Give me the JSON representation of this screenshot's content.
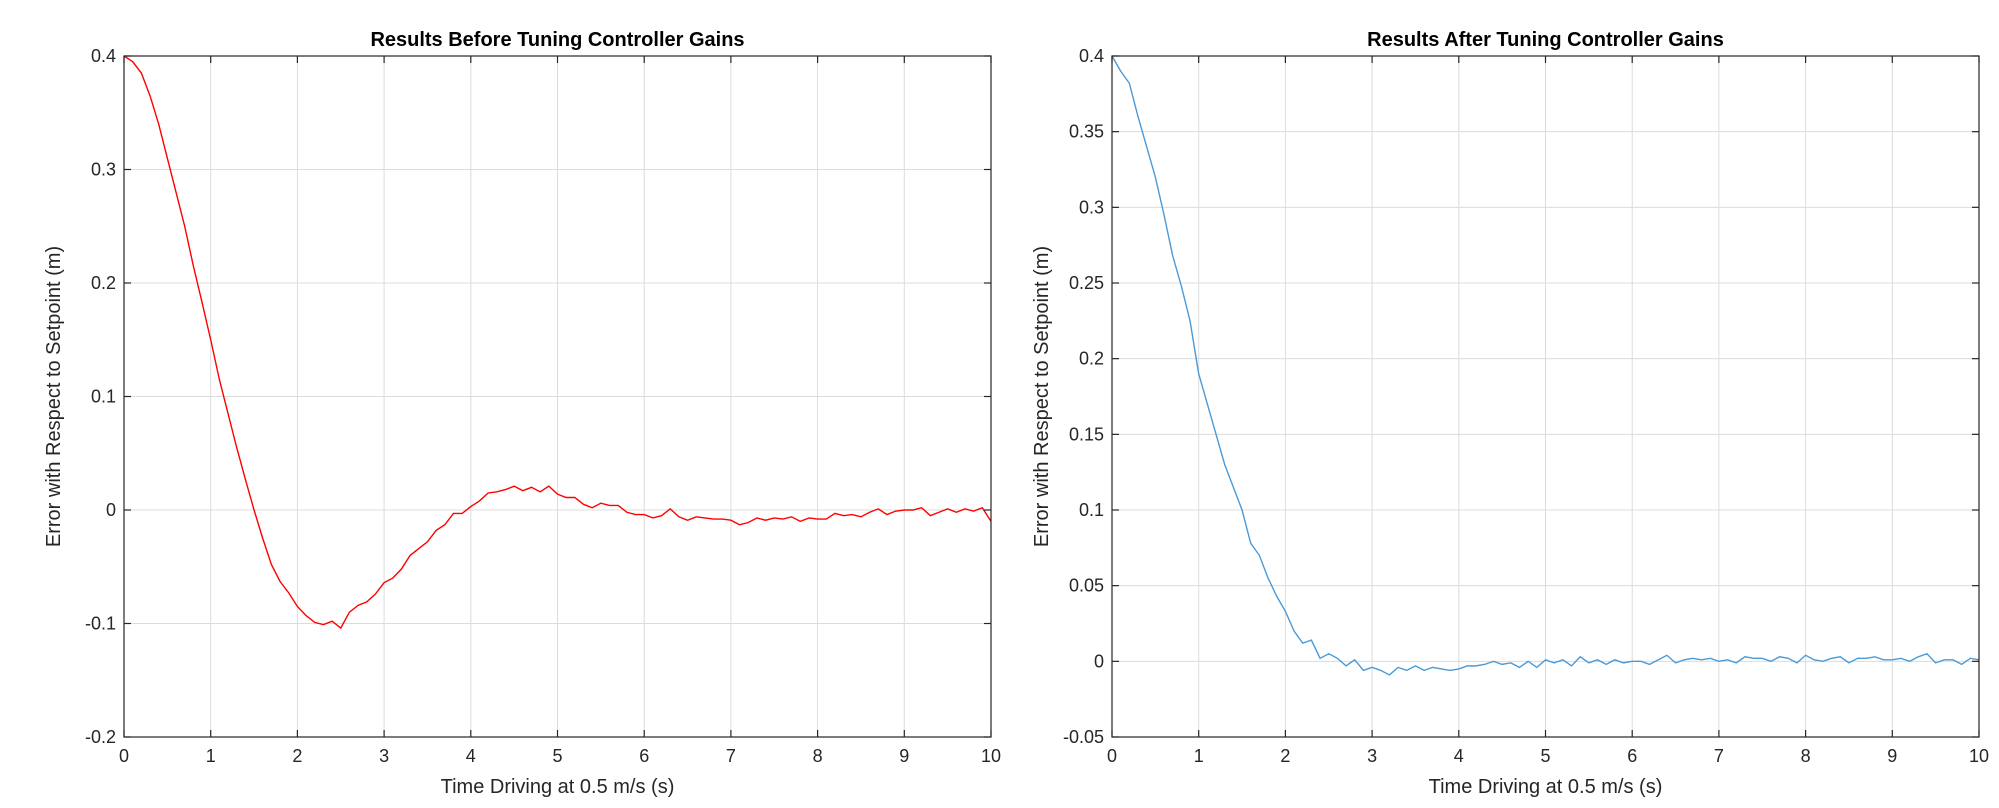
{
  "chart_data": [
    {
      "type": "line",
      "title": "Results Before Tuning Controller Gains",
      "xlabel": "Time Driving at 0.5 m/s (s)",
      "ylabel": "Error with Respect to Setpoint (m)",
      "xlim": [
        0,
        10
      ],
      "ylim": [
        -0.2,
        0.4
      ],
      "xticks": [
        0,
        1,
        2,
        3,
        4,
        5,
        6,
        7,
        8,
        9,
        10
      ],
      "yticks": [
        -0.2,
        -0.1,
        0,
        0.1,
        0.2,
        0.3,
        0.4
      ],
      "xtick_labels": [
        "0",
        "1",
        "2",
        "3",
        "4",
        "5",
        "6",
        "7",
        "8",
        "9",
        "10"
      ],
      "ytick_labels": [
        "-0.2",
        "-0.1",
        "0",
        "0.1",
        "0.2",
        "0.3",
        "0.4"
      ],
      "grid": true,
      "series": [
        {
          "color": "#ff0000",
          "x": [
            0,
            0.1,
            0.2,
            0.3,
            0.4,
            0.5,
            0.6,
            0.7,
            0.8,
            0.9,
            1.0,
            1.1,
            1.2,
            1.3,
            1.4,
            1.5,
            1.6,
            1.7,
            1.8,
            1.9,
            2.0,
            2.1,
            2.2,
            2.3,
            2.4,
            2.5,
            2.6,
            2.7,
            2.8,
            2.9,
            3.0,
            3.1,
            3.2,
            3.3,
            3.4,
            3.5,
            3.6,
            3.7,
            3.8,
            3.9,
            4.0,
            4.1,
            4.2,
            4.3,
            4.4,
            4.5,
            4.6,
            4.7,
            4.8,
            4.9,
            5.0,
            5.1,
            5.2,
            5.3,
            5.4,
            5.5,
            5.6,
            5.7,
            5.8,
            5.9,
            6.0,
            6.1,
            6.2,
            6.3,
            6.4,
            6.5,
            6.6,
            6.7,
            6.8,
            6.9,
            7.0,
            7.1,
            7.2,
            7.3,
            7.4,
            7.5,
            7.6,
            7.7,
            7.8,
            7.9,
            8.0,
            8.1,
            8.2,
            8.3,
            8.4,
            8.5,
            8.6,
            8.7,
            8.8,
            8.9,
            9.0,
            9.1,
            9.2,
            9.3,
            9.4,
            9.5,
            9.6,
            9.7,
            9.8,
            9.9,
            10.0
          ],
          "y": [
            0.4,
            0.395,
            0.385,
            0.365,
            0.34,
            0.31,
            0.28,
            0.25,
            0.215,
            0.183,
            0.15,
            0.115,
            0.085,
            0.055,
            0.027,
            0.0,
            -0.025,
            -0.048,
            -0.063,
            -0.073,
            -0.085,
            -0.093,
            -0.099,
            -0.101,
            -0.098,
            -0.104,
            -0.09,
            -0.084,
            -0.081,
            -0.074,
            -0.064,
            -0.06,
            -0.052,
            -0.04,
            -0.034,
            -0.028,
            -0.018,
            -0.013,
            -0.003,
            -0.003,
            0.003,
            0.008,
            0.015,
            0.016,
            0.018,
            0.021,
            0.017,
            0.02,
            0.016,
            0.021,
            0.014,
            0.011,
            0.011,
            0.005,
            0.002,
            0.006,
            0.004,
            0.004,
            -0.002,
            -0.004,
            -0.004,
            -0.007,
            -0.005,
            0.001,
            -0.006,
            -0.009,
            -0.006,
            -0.007,
            -0.008,
            -0.008,
            -0.009,
            -0.013,
            -0.011,
            -0.007,
            -0.009,
            -0.007,
            -0.008,
            -0.006,
            -0.01,
            -0.007,
            -0.008,
            -0.008,
            -0.003,
            -0.005,
            -0.004,
            -0.006,
            -0.002,
            0.001,
            -0.004,
            -0.001,
            0.0,
            0.0,
            0.002,
            -0.005,
            -0.002,
            0.001,
            -0.002,
            0.001,
            -0.001,
            0.002,
            -0.01
          ]
        }
      ]
    },
    {
      "type": "line",
      "title": "Results After Tuning Controller Gains",
      "xlabel": "Time Driving at 0.5 m/s (s)",
      "ylabel": "Error with Respect to Setpoint (m)",
      "xlim": [
        0,
        10
      ],
      "ylim": [
        -0.05,
        0.4
      ],
      "xticks": [
        0,
        1,
        2,
        3,
        4,
        5,
        6,
        7,
        8,
        9,
        10
      ],
      "yticks": [
        -0.05,
        0,
        0.05,
        0.1,
        0.15,
        0.2,
        0.25,
        0.3,
        0.35,
        0.4
      ],
      "xtick_labels": [
        "0",
        "1",
        "2",
        "3",
        "4",
        "5",
        "6",
        "7",
        "8",
        "9",
        "10"
      ],
      "ytick_labels": [
        "-0.05",
        "0",
        "0.05",
        "0.1",
        "0.15",
        "0.2",
        "0.25",
        "0.3",
        "0.35",
        "0.4"
      ],
      "grid": true,
      "series": [
        {
          "color": "#4a9ad8",
          "x": [
            0,
            0.1,
            0.2,
            0.3,
            0.4,
            0.5,
            0.6,
            0.7,
            0.8,
            0.9,
            1.0,
            1.1,
            1.2,
            1.3,
            1.4,
            1.5,
            1.6,
            1.7,
            1.8,
            1.9,
            2.0,
            2.1,
            2.2,
            2.3,
            2.4,
            2.5,
            2.6,
            2.7,
            2.8,
            2.9,
            3.0,
            3.1,
            3.2,
            3.3,
            3.4,
            3.5,
            3.6,
            3.7,
            3.8,
            3.9,
            4.0,
            4.1,
            4.2,
            4.3,
            4.4,
            4.5,
            4.6,
            4.7,
            4.8,
            4.9,
            5.0,
            5.1,
            5.2,
            5.3,
            5.4,
            5.5,
            5.6,
            5.7,
            5.8,
            5.9,
            6.0,
            6.1,
            6.2,
            6.3,
            6.4,
            6.5,
            6.6,
            6.7,
            6.8,
            6.9,
            7.0,
            7.1,
            7.2,
            7.3,
            7.4,
            7.5,
            7.6,
            7.7,
            7.8,
            7.9,
            8.0,
            8.1,
            8.2,
            8.3,
            8.4,
            8.5,
            8.6,
            8.7,
            8.8,
            8.9,
            9.0,
            9.1,
            9.2,
            9.3,
            9.4,
            9.5,
            9.6,
            9.7,
            9.8,
            9.9,
            10.0
          ],
          "y": [
            0.4,
            0.39,
            0.382,
            0.36,
            0.34,
            0.32,
            0.295,
            0.268,
            0.248,
            0.225,
            0.19,
            0.17,
            0.15,
            0.13,
            0.115,
            0.1,
            0.078,
            0.07,
            0.055,
            0.043,
            0.033,
            0.02,
            0.012,
            0.014,
            0.002,
            0.005,
            0.002,
            -0.003,
            0.001,
            -0.006,
            -0.004,
            -0.006,
            -0.009,
            -0.004,
            -0.006,
            -0.003,
            -0.006,
            -0.004,
            -0.005,
            -0.006,
            -0.005,
            -0.003,
            -0.003,
            -0.002,
            0.0,
            -0.002,
            -0.001,
            -0.004,
            0.0,
            -0.004,
            0.001,
            -0.001,
            0.001,
            -0.003,
            0.003,
            -0.001,
            0.001,
            -0.002,
            0.001,
            -0.001,
            0.0,
            0.0,
            -0.002,
            0.001,
            0.004,
            -0.001,
            0.001,
            0.002,
            0.001,
            0.002,
            0.0,
            0.001,
            -0.001,
            0.003,
            0.002,
            0.002,
            0.0,
            0.003,
            0.002,
            -0.001,
            0.004,
            0.001,
            0.0,
            0.002,
            0.003,
            -0.001,
            0.002,
            0.002,
            0.003,
            0.001,
            0.001,
            0.002,
            0.0,
            0.003,
            0.005,
            -0.001,
            0.001,
            0.001,
            -0.002,
            0.002,
            0.001
          ]
        }
      ]
    }
  ]
}
